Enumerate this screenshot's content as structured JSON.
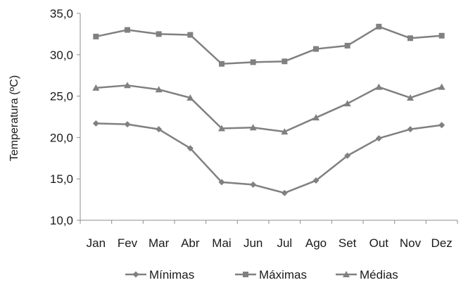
{
  "chart_data": {
    "type": "line",
    "ylabel": "Temperatura (ºC)",
    "xlabel": "",
    "ylim": [
      10,
      35
    ],
    "yticks": [
      "10,0",
      "15,0",
      "20,0",
      "25,0",
      "30,0",
      "35,0"
    ],
    "categories": [
      "Jan",
      "Fev",
      "Mar",
      "Abr",
      "Mai",
      "Jun",
      "Jul",
      "Ago",
      "Set",
      "Out",
      "Nov",
      "Dez"
    ],
    "grid": false,
    "legend_position": "bottom",
    "series_color": "#808080",
    "series": [
      {
        "name": "Mínimas",
        "marker": "diamond",
        "values": [
          21.7,
          21.6,
          21.0,
          18.7,
          14.6,
          14.3,
          13.3,
          14.8,
          17.8,
          19.9,
          21.0,
          21.5
        ]
      },
      {
        "name": "Máximas",
        "marker": "square",
        "values": [
          32.2,
          33.0,
          32.5,
          32.4,
          28.9,
          29.1,
          29.2,
          30.7,
          31.1,
          33.4,
          32.0,
          32.3
        ]
      },
      {
        "name": "Médias",
        "marker": "triangle",
        "values": [
          26.0,
          26.3,
          25.8,
          24.8,
          21.1,
          21.2,
          20.7,
          22.4,
          24.1,
          26.1,
          24.8,
          26.1
        ]
      }
    ]
  }
}
